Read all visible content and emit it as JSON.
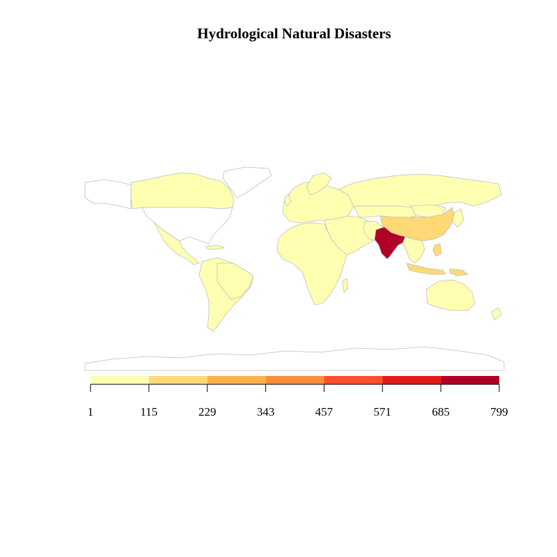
{
  "title": "Hydrological Natural Disasters",
  "legend": {
    "breaks": [
      "1",
      "115",
      "229",
      "343",
      "457",
      "571",
      "685",
      "799"
    ],
    "colors": [
      "#FFFFB2",
      "#FED976",
      "#FEB24C",
      "#FD8D3C",
      "#FC4E2A",
      "#E31A1C",
      "#B10026"
    ]
  },
  "map_data": {
    "no_data_color": "#FFFFFF",
    "border_color": "#BEBEBE",
    "countries": [
      {
        "name": "India",
        "class": 6
      },
      {
        "name": "China",
        "class": 1
      },
      {
        "name": "Indonesia",
        "class": 1
      },
      {
        "name": "Philippines",
        "class": 1
      },
      {
        "name": "Papua New Guinea",
        "class": 1
      },
      {
        "name": "Vietnam",
        "class": 1
      },
      {
        "name": "Pakistan",
        "class": 0
      },
      {
        "name": "Bangladesh",
        "class": 1
      },
      {
        "name": "Canada",
        "class": 0
      },
      {
        "name": "Brazil",
        "class": 0
      },
      {
        "name": "Australia",
        "class": 0
      },
      {
        "name": "Russia",
        "class": 0
      },
      {
        "name": "Africa (most countries)",
        "class": 0
      },
      {
        "name": "Europe (most countries)",
        "class": 0
      }
    ]
  }
}
